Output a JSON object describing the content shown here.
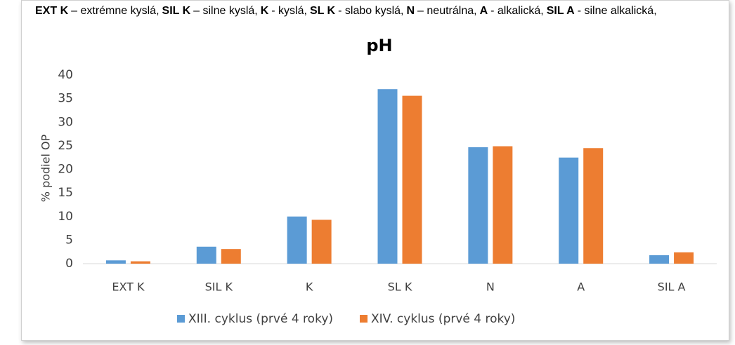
{
  "note": [
    {
      "abbr": "EXT K",
      "text": "– extrémne kyslá,"
    },
    {
      "abbr": "SIL K",
      "text": "– silne kyslá,"
    },
    {
      "abbr": "K",
      "text": "- kyslá,"
    },
    {
      "abbr": "SL K",
      "text": "- slabo kyslá,"
    },
    {
      "abbr": "N",
      "text": "– neutrálna,"
    },
    {
      "abbr": "A",
      "text": "- alkalická,"
    },
    {
      "abbr": "SIL A",
      "text": "- silne alkalická,"
    }
  ],
  "chart_data": {
    "type": "bar",
    "title": "pH",
    "ylabel": "% podiel OP",
    "categories": [
      "EXT K",
      "SIL K",
      "K",
      "SL K",
      "N",
      "A",
      "SIL A"
    ],
    "series": [
      {
        "name": "XIII. cyklus (prvé 4 roky)",
        "color": "#5b9bd5",
        "values": [
          0.7,
          3.6,
          10,
          37,
          24.7,
          22.5,
          1.8
        ]
      },
      {
        "name": "XIV. cyklus (prvé 4 roky)",
        "color": "#ed7d31",
        "values": [
          0.5,
          3.1,
          9.3,
          35.6,
          24.9,
          24.5,
          2.4
        ]
      }
    ],
    "ylim": [
      0,
      40
    ],
    "yticks": [
      0,
      5,
      10,
      15,
      20,
      25,
      30,
      35,
      40
    ],
    "grid": false,
    "legend": "bottom"
  }
}
